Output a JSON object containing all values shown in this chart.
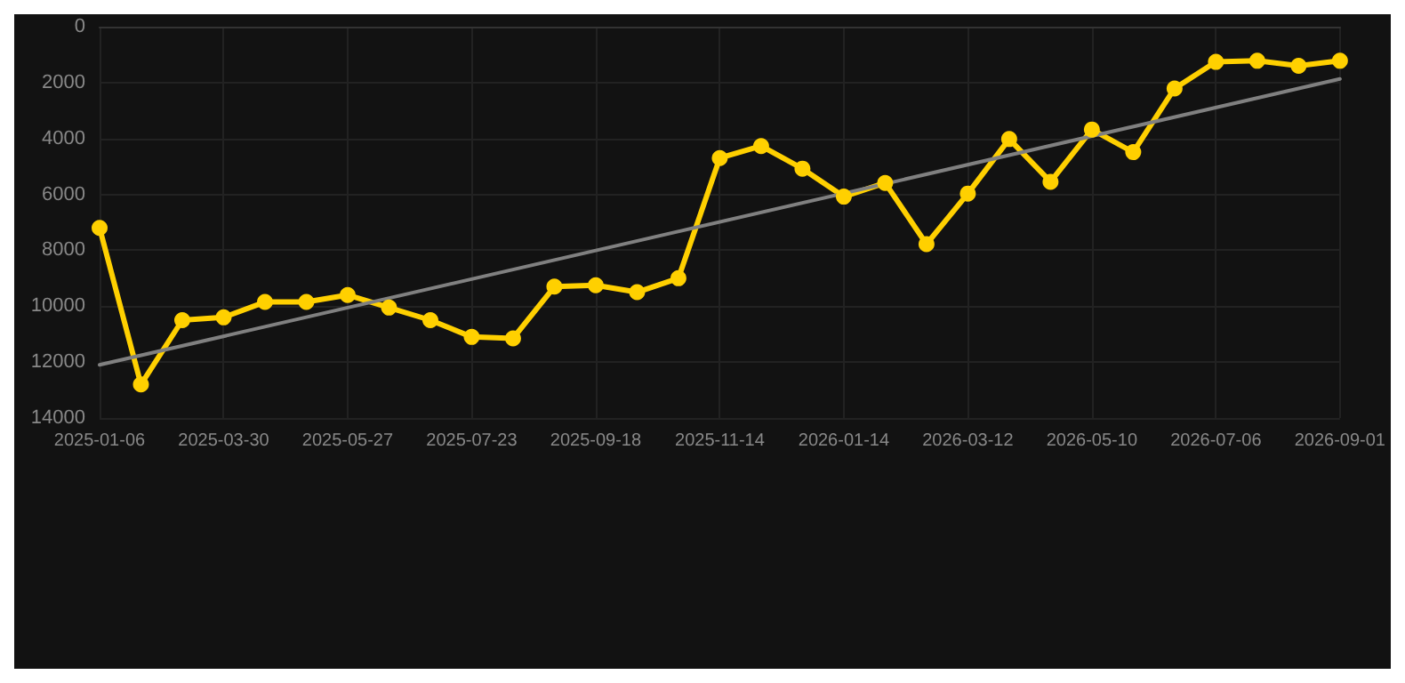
{
  "chart_data": {
    "type": "line",
    "categories": [
      "2025-01-06",
      null,
      null,
      "2025-03-30",
      null,
      null,
      "2025-05-27",
      null,
      null,
      "2025-07-23",
      null,
      null,
      "2025-09-18",
      null,
      null,
      "2025-11-14",
      null,
      null,
      "2026-01-14",
      null,
      null,
      "2026-03-12",
      null,
      null,
      "2026-05-10",
      null,
      null,
      "2026-07-06",
      null,
      null,
      "2026-09-01"
    ],
    "series": [
      {
        "color": "#ffd000",
        "marker": "circle",
        "values": [
          7200,
          12800,
          10500,
          10400,
          9850,
          9850,
          9600,
          10050,
          10500,
          11100,
          11150,
          9300,
          9250,
          9500,
          9000,
          4700,
          4270,
          5080,
          6080,
          5590,
          7780,
          5970,
          4020,
          5550,
          3680,
          4490,
          2210,
          1260,
          1220,
          1400,
          1220
        ]
      },
      {
        "type": "line",
        "color": "#808080",
        "marker": "none",
        "values": [
          12100,
          null,
          null,
          null,
          null,
          null,
          null,
          null,
          null,
          null,
          null,
          null,
          null,
          null,
          null,
          null,
          null,
          null,
          null,
          null,
          null,
          null,
          null,
          null,
          null,
          null,
          null,
          null,
          null,
          null,
          1870
        ]
      }
    ],
    "ylim": [
      14000,
      0
    ],
    "yticks": [
      0,
      2000,
      4000,
      6000,
      8000,
      10000,
      12000,
      14000
    ],
    "grid": true,
    "line_style": "solid"
  }
}
